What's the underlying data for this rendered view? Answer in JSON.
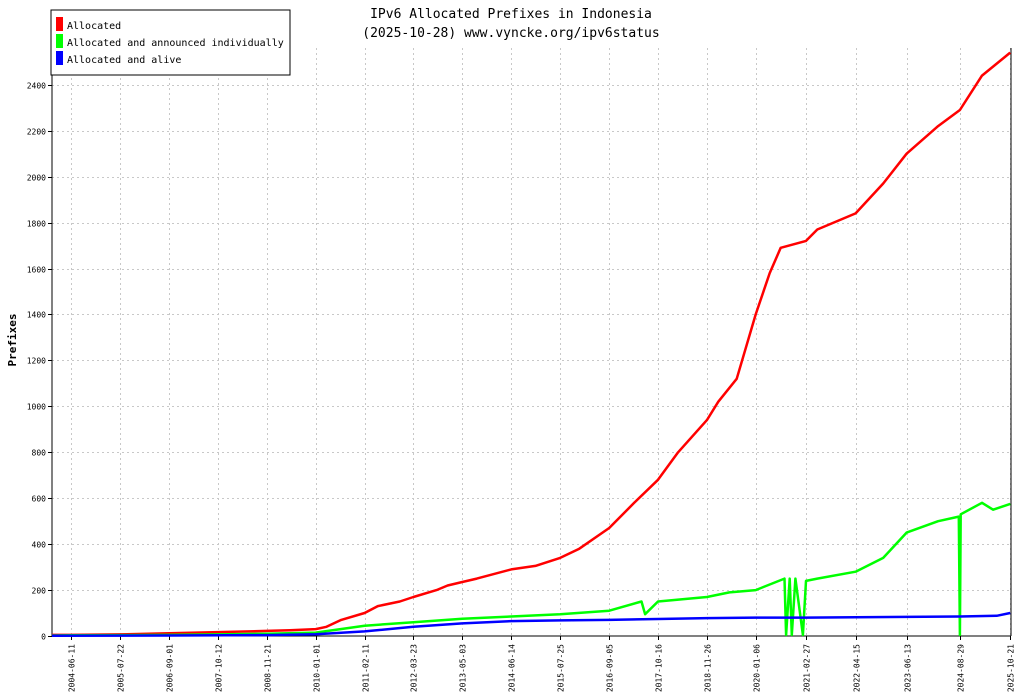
{
  "chart_data": {
    "type": "line",
    "title": "IPv6 Allocated Prefixes in Indonesia",
    "subtitle": "(2025-10-28) www.vyncke.org/ipv6status",
    "xlabel": "",
    "ylabel": "Prefixes",
    "x_tick_labels": [
      "2004-06-11",
      "2005-07-22",
      "2006-09-01",
      "2007-10-12",
      "2008-11-21",
      "2010-01-01",
      "2011-02-11",
      "2012-03-23",
      "2013-05-03",
      "2014-06-14",
      "2015-07-25",
      "2016-09-05",
      "2017-10-16",
      "2018-11-26",
      "2020-01-06",
      "2021-02-27",
      "2022-04-15",
      "2023-06-13",
      "2024-08-29",
      "2025-10-21"
    ],
    "y_ticks": [
      0,
      200,
      400,
      600,
      800,
      1000,
      1200,
      1400,
      1600,
      1800,
      2000,
      2200,
      2400
    ],
    "ylim": [
      0,
      2560
    ],
    "grid": true,
    "legend_position": "top-left",
    "series": [
      {
        "name": "Allocated",
        "color": "#ff0000",
        "points": [
          [
            "2004-01-01",
            5
          ],
          [
            "2004-06-11",
            5
          ],
          [
            "2005-07-22",
            7
          ],
          [
            "2006-09-01",
            12
          ],
          [
            "2007-10-12",
            17
          ],
          [
            "2008-11-21",
            22
          ],
          [
            "2009-06-01",
            25
          ],
          [
            "2010-01-01",
            30
          ],
          [
            "2010-04-01",
            40
          ],
          [
            "2010-08-01",
            70
          ],
          [
            "2011-02-11",
            100
          ],
          [
            "2011-06-01",
            130
          ],
          [
            "2011-12-01",
            150
          ],
          [
            "2012-03-23",
            170
          ],
          [
            "2012-10-01",
            200
          ],
          [
            "2013-01-01",
            220
          ],
          [
            "2013-05-03",
            235
          ],
          [
            "2013-09-01",
            250
          ],
          [
            "2014-06-14",
            290
          ],
          [
            "2015-01-01",
            305
          ],
          [
            "2015-07-25",
            340
          ],
          [
            "2016-01-01",
            380
          ],
          [
            "2016-09-05",
            470
          ],
          [
            "2017-04-01",
            580
          ],
          [
            "2017-10-16",
            680
          ],
          [
            "2018-04-01",
            800
          ],
          [
            "2018-11-26",
            940
          ],
          [
            "2019-03-01",
            1020
          ],
          [
            "2019-08-01",
            1120
          ],
          [
            "2020-01-06",
            1400
          ],
          [
            "2020-05-01",
            1580
          ],
          [
            "2020-08-01",
            1690
          ],
          [
            "2021-02-27",
            1720
          ],
          [
            "2021-06-01",
            1770
          ],
          [
            "2022-04-15",
            1840
          ],
          [
            "2022-12-01",
            1970
          ],
          [
            "2023-06-13",
            2100
          ],
          [
            "2024-03-01",
            2220
          ],
          [
            "2024-08-29",
            2290
          ],
          [
            "2025-03-01",
            2440
          ],
          [
            "2025-10-21",
            2540
          ]
        ]
      },
      {
        "name": "Allocated and announced individually",
        "color": "#00ff00",
        "points": [
          [
            "2004-01-01",
            2
          ],
          [
            "2004-06-11",
            3
          ],
          [
            "2005-07-22",
            4
          ],
          [
            "2006-09-01",
            5
          ],
          [
            "2007-10-12",
            7
          ],
          [
            "2008-11-21",
            10
          ],
          [
            "2010-01-01",
            15
          ],
          [
            "2011-02-11",
            45
          ],
          [
            "2012-03-23",
            60
          ],
          [
            "2013-05-03",
            75
          ],
          [
            "2014-06-14",
            85
          ],
          [
            "2015-07-25",
            95
          ],
          [
            "2016-09-05",
            110
          ],
          [
            "2017-06-01",
            150
          ],
          [
            "2017-07-01",
            95
          ],
          [
            "2017-10-16",
            150
          ],
          [
            "2018-11-26",
            170
          ],
          [
            "2019-06-01",
            190
          ],
          [
            "2020-01-06",
            200
          ],
          [
            "2020-09-01",
            250
          ],
          [
            "2020-09-15",
            5
          ],
          [
            "2020-10-15",
            250
          ],
          [
            "2020-11-01",
            5
          ],
          [
            "2020-12-01",
            250
          ],
          [
            "2021-02-01",
            5
          ],
          [
            "2021-02-27",
            240
          ],
          [
            "2021-06-01",
            250
          ],
          [
            "2022-04-15",
            280
          ],
          [
            "2022-12-01",
            340
          ],
          [
            "2023-06-13",
            450
          ],
          [
            "2024-03-01",
            500
          ],
          [
            "2024-08-20",
            520
          ],
          [
            "2024-08-29",
            5
          ],
          [
            "2024-09-05",
            530
          ],
          [
            "2025-03-01",
            580
          ],
          [
            "2025-06-01",
            550
          ],
          [
            "2025-10-21",
            575
          ]
        ]
      },
      {
        "name": "Allocated and alive",
        "color": "#0000ff",
        "points": [
          [
            "2004-01-01",
            1
          ],
          [
            "2006-09-01",
            2
          ],
          [
            "2008-11-21",
            4
          ],
          [
            "2010-01-01",
            8
          ],
          [
            "2011-02-11",
            20
          ],
          [
            "2012-03-23",
            40
          ],
          [
            "2013-05-03",
            55
          ],
          [
            "2014-06-14",
            65
          ],
          [
            "2015-07-25",
            68
          ],
          [
            "2016-09-05",
            70
          ],
          [
            "2017-10-16",
            74
          ],
          [
            "2018-11-26",
            78
          ],
          [
            "2020-01-06",
            80
          ],
          [
            "2021-02-27",
            80
          ],
          [
            "2022-04-15",
            82
          ],
          [
            "2023-06-13",
            83
          ],
          [
            "2024-08-29",
            85
          ],
          [
            "2025-07-01",
            88
          ],
          [
            "2025-10-21",
            100
          ]
        ]
      }
    ]
  }
}
